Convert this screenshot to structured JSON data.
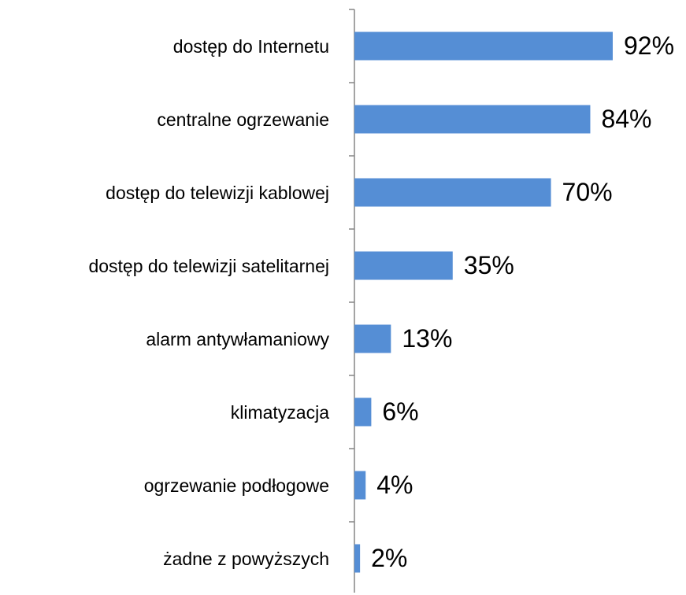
{
  "chart_data": {
    "type": "bar",
    "orientation": "horizontal",
    "categories": [
      "dostęp do Internetu",
      "centralne ogrzewanie",
      "dostęp do telewizji kablowej",
      "dostęp do telewizji satelitarnej",
      "alarm antywłamaniowy",
      "klimatyzacja",
      "ogrzewanie podłogowe",
      "żadne z powyższych"
    ],
    "values": [
      92,
      84,
      70,
      35,
      13,
      6,
      4,
      2
    ],
    "value_labels": [
      "92%",
      "84%",
      "70%",
      "35%",
      "13%",
      "6%",
      "4%",
      "2%"
    ],
    "color": "#558ed5"
  }
}
